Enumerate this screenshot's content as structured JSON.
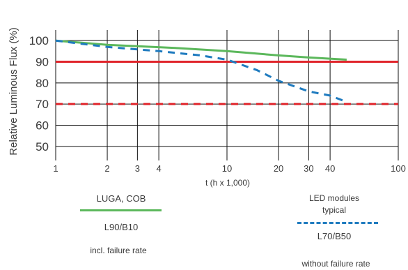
{
  "chart_data": {
    "type": "line",
    "title": "",
    "xlabel": "t (h x 1,000)",
    "ylabel": "Relative Luminous Flux (%)",
    "x_scale": "log",
    "xlim": [
      1,
      100
    ],
    "ylim": [
      45,
      105
    ],
    "x_ticks": [
      1,
      2,
      3,
      4,
      10,
      20,
      30,
      40,
      100
    ],
    "x_tick_labels": [
      "1",
      "2",
      "3",
      "4",
      "10",
      "20",
      "30",
      "40",
      "100"
    ],
    "y_ticks": [
      50,
      60,
      70,
      80,
      90,
      100
    ],
    "y_tick_labels": [
      "50",
      "60",
      "70",
      "80",
      "90",
      "100"
    ],
    "grid": true,
    "series": [
      {
        "name": "LUGA, COB",
        "color": "#5cb85c",
        "style": "solid",
        "x": [
          1,
          2,
          5,
          10,
          20,
          30,
          50
        ],
        "y": [
          100,
          98,
          96.5,
          95,
          93,
          92,
          91
        ]
      },
      {
        "name": "LED modules typical",
        "color": "#1f7bbf",
        "style": "dashed",
        "x": [
          1,
          2,
          4,
          7,
          10,
          15,
          20,
          30,
          40,
          50
        ],
        "y": [
          100,
          97,
          95,
          93,
          91,
          86,
          81,
          76,
          74,
          71
        ]
      }
    ],
    "reference_lines": [
      {
        "y": 90,
        "color": "#e0252b",
        "style": "solid"
      },
      {
        "y": 70,
        "color": "#e0252b",
        "style": "dashed"
      }
    ]
  },
  "legend": {
    "left": {
      "title": "LUGA, COB",
      "metric": "L90/B10",
      "note": "incl. failure rate",
      "color": "#5cb85c"
    },
    "right": {
      "title_line1": "LED modules",
      "title_line2": "typical",
      "metric": "L70/B50",
      "note": "without failure rate",
      "color": "#1f7bbf"
    }
  }
}
